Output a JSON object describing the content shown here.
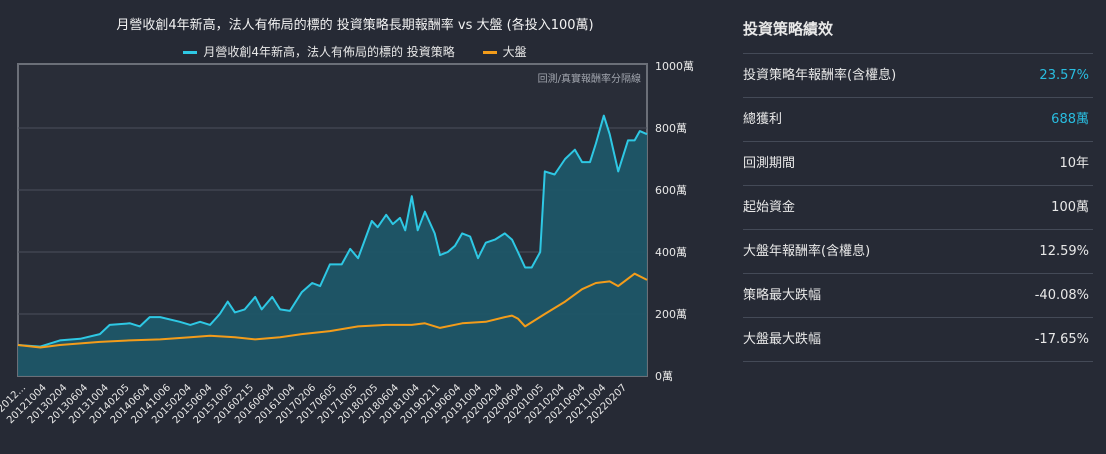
{
  "chart_data": {
    "type": "area",
    "title": "月營收創4年新高，法人有佈局的標的 投資策略長期報酬率 vs 大盤 (各投入100萬)",
    "annotation": "回測/真實報酬率分隔線",
    "xlabel": "",
    "ylabel": "",
    "ylim": [
      0,
      1000
    ],
    "xlim": [
      2012.6,
      2022.2
    ],
    "y_ticks": [
      {
        "v": 0,
        "label": "0萬"
      },
      {
        "v": 200,
        "label": "200萬"
      },
      {
        "v": 400,
        "label": "400萬"
      },
      {
        "v": 600,
        "label": "600萬"
      },
      {
        "v": 800,
        "label": "800萬"
      },
      {
        "v": 1000,
        "label": "1000萬"
      }
    ],
    "x_tick_labels": [
      "2012...",
      "20121004",
      "20130204",
      "20130604",
      "20131004",
      "20140205",
      "20140604",
      "20141006",
      "20150204",
      "20150604",
      "20151005",
      "20160215",
      "20160604",
      "20161004",
      "20170206",
      "20170605",
      "20171005",
      "20180205",
      "20180604",
      "20181004",
      "20190211",
      "20190604",
      "20191004",
      "20200204",
      "20200604",
      "20201005",
      "20210204",
      "20210604",
      "20211004",
      "20220207"
    ],
    "legend_position": "top-center",
    "series": [
      {
        "name": "月營收創4年新高，法人有佈局的標的 投資策略",
        "color": "#2ec8e4",
        "fill": "#1d5667",
        "points": [
          [
            2012.6,
            100
          ],
          [
            2012.94,
            95
          ],
          [
            2013.24,
            115
          ],
          [
            2013.55,
            120
          ],
          [
            2013.85,
            135
          ],
          [
            2014.0,
            165
          ],
          [
            2014.31,
            170
          ],
          [
            2014.46,
            160
          ],
          [
            2014.61,
            190
          ],
          [
            2014.77,
            190
          ],
          [
            2015.07,
            175
          ],
          [
            2015.23,
            165
          ],
          [
            2015.38,
            175
          ],
          [
            2015.53,
            165
          ],
          [
            2015.68,
            200
          ],
          [
            2015.8,
            240
          ],
          [
            2015.91,
            205
          ],
          [
            2016.06,
            215
          ],
          [
            2016.22,
            255
          ],
          [
            2016.32,
            215
          ],
          [
            2016.48,
            255
          ],
          [
            2016.6,
            215
          ],
          [
            2016.75,
            210
          ],
          [
            2016.93,
            270
          ],
          [
            2017.09,
            300
          ],
          [
            2017.21,
            290
          ],
          [
            2017.36,
            360
          ],
          [
            2017.54,
            360
          ],
          [
            2017.67,
            410
          ],
          [
            2017.79,
            380
          ],
          [
            2018.0,
            500
          ],
          [
            2018.09,
            480
          ],
          [
            2018.22,
            520
          ],
          [
            2018.32,
            490
          ],
          [
            2018.43,
            510
          ],
          [
            2018.51,
            470
          ],
          [
            2018.61,
            580
          ],
          [
            2018.7,
            470
          ],
          [
            2018.81,
            530
          ],
          [
            2018.96,
            460
          ],
          [
            2019.04,
            390
          ],
          [
            2019.16,
            400
          ],
          [
            2019.27,
            420
          ],
          [
            2019.38,
            460
          ],
          [
            2019.5,
            450
          ],
          [
            2019.62,
            380
          ],
          [
            2019.74,
            430
          ],
          [
            2019.88,
            440
          ],
          [
            2020.03,
            460
          ],
          [
            2020.14,
            440
          ],
          [
            2020.23,
            400
          ],
          [
            2020.34,
            350
          ],
          [
            2020.44,
            350
          ],
          [
            2020.57,
            400
          ],
          [
            2020.64,
            660
          ],
          [
            2020.79,
            650
          ],
          [
            2020.95,
            700
          ],
          [
            2021.1,
            730
          ],
          [
            2021.21,
            690
          ],
          [
            2021.33,
            690
          ],
          [
            2021.42,
            750
          ],
          [
            2021.54,
            840
          ],
          [
            2021.63,
            780
          ],
          [
            2021.76,
            660
          ],
          [
            2021.91,
            760
          ],
          [
            2022.01,
            760
          ],
          [
            2022.09,
            790
          ],
          [
            2022.2,
            780
          ]
        ]
      },
      {
        "name": "大盤",
        "color": "#f39c1a",
        "points": [
          [
            2012.6,
            100
          ],
          [
            2012.94,
            92
          ],
          [
            2013.24,
            100
          ],
          [
            2013.85,
            110
          ],
          [
            2014.31,
            115
          ],
          [
            2014.77,
            118
          ],
          [
            2015.23,
            125
          ],
          [
            2015.53,
            130
          ],
          [
            2015.91,
            125
          ],
          [
            2016.22,
            118
          ],
          [
            2016.6,
            125
          ],
          [
            2016.93,
            135
          ],
          [
            2017.36,
            145
          ],
          [
            2017.79,
            160
          ],
          [
            2018.22,
            165
          ],
          [
            2018.61,
            165
          ],
          [
            2018.81,
            170
          ],
          [
            2019.04,
            155
          ],
          [
            2019.38,
            170
          ],
          [
            2019.74,
            175
          ],
          [
            2020.03,
            190
          ],
          [
            2020.14,
            195
          ],
          [
            2020.23,
            185
          ],
          [
            2020.34,
            160
          ],
          [
            2020.64,
            200
          ],
          [
            2020.95,
            240
          ],
          [
            2021.21,
            280
          ],
          [
            2021.42,
            300
          ],
          [
            2021.63,
            305
          ],
          [
            2021.76,
            290
          ],
          [
            2022.01,
            330
          ],
          [
            2022.2,
            310
          ]
        ]
      }
    ]
  },
  "panel": {
    "title": "投資策略績效",
    "rows": [
      {
        "label": "投資策略年報酬率(含權息)",
        "value": "23.57%",
        "accent": true
      },
      {
        "label": "總獲利",
        "value": "688萬",
        "accent": true
      },
      {
        "label": "回測期間",
        "value": "10年",
        "accent": false
      },
      {
        "label": "起始資金",
        "value": "100萬",
        "accent": false
      },
      {
        "label": "大盤年報酬率(含權息)",
        "value": "12.59%",
        "accent": false
      },
      {
        "label": "策略最大跌幅",
        "value": "-40.08%",
        "accent": false
      },
      {
        "label": "大盤最大跌幅",
        "value": "-17.65%",
        "accent": false
      }
    ]
  }
}
